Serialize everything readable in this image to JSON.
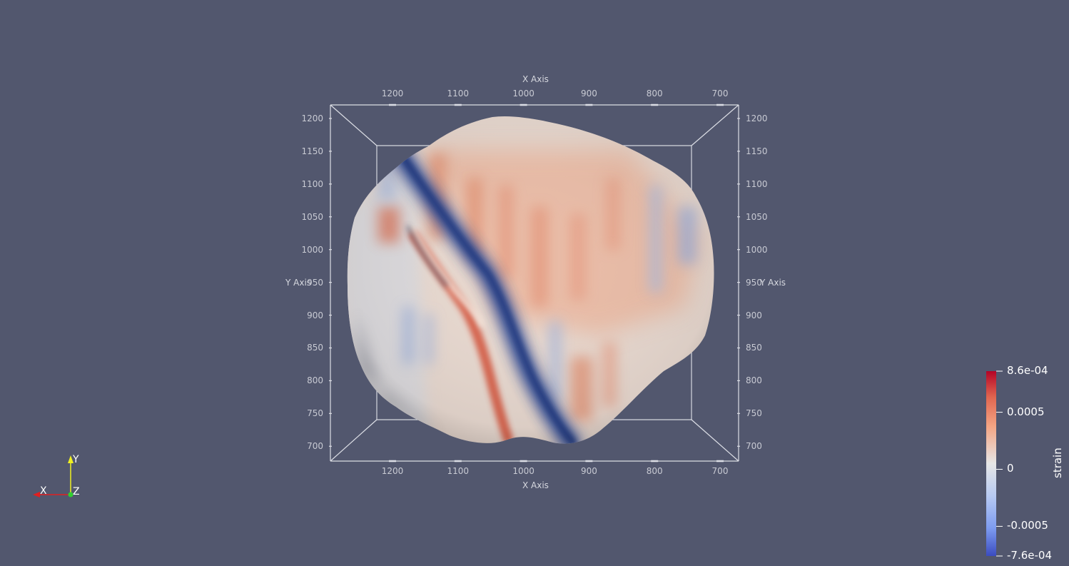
{
  "view": {
    "background": "#52576e"
  },
  "axes": {
    "x_title": "X Axis",
    "y_title": "Y Axis",
    "x_ticks": [
      "1200",
      "1100",
      "1000",
      "900",
      "800",
      "700"
    ],
    "y_ticks": [
      "1200",
      "1150",
      "1100",
      "1050",
      "1000",
      "950",
      "900",
      "850",
      "800",
      "750",
      "700"
    ]
  },
  "legend": {
    "title": "strain",
    "labels": [
      "8.6e-04",
      "0.0005",
      "0",
      "-0.0005",
      "-7.6e-04"
    ],
    "colors": {
      "max": "#b2182b",
      "mid": "#dddddd",
      "min": "#3b4cc0"
    }
  },
  "orientation": {
    "x_label": "X",
    "y_label": "Y",
    "z_label": "Z",
    "x_color": "#e02020",
    "y_color": "#f0f020",
    "z_color": "#30d030"
  }
}
